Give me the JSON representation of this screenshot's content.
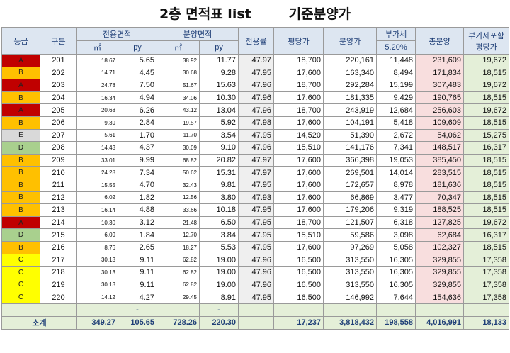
{
  "title": "2층 면적표 list        기준분양가",
  "headers": {
    "grade": "등급",
    "unit": "구분",
    "exclusive_area": "전용면적",
    "sale_area": "분양면적",
    "sqm": "㎡",
    "py": "py",
    "ratio": "전용률",
    "price_per_py": "평당가",
    "sale_price": "분양가",
    "vat": "부가세",
    "vat_rate": "5.20%",
    "total_price": "총분양",
    "vat_incl_line1": "부가세포함",
    "vat_incl_line2": "평당가"
  },
  "grade_colors": {
    "A": "#c00000",
    "B": "#ffc000",
    "C": "#ffff00",
    "D": "#a9d08e",
    "E": "#d9d9d9"
  },
  "rows": [
    {
      "grade": "A",
      "unit": "201",
      "ex_m2": "18.67",
      "ex_py": "5.65",
      "sa_m2": "38.92",
      "sa_py": "11.77",
      "ratio": "47.97",
      "ppy": "18,700",
      "price": "220,161",
      "vat": "11,448",
      "total": "231,609",
      "vppy": "19,672"
    },
    {
      "grade": "B",
      "unit": "202",
      "ex_m2": "14.71",
      "ex_py": "4.45",
      "sa_m2": "30.68",
      "sa_py": "9.28",
      "ratio": "47.95",
      "ppy": "17,600",
      "price": "163,340",
      "vat": "8,494",
      "total": "171,834",
      "vppy": "18,515"
    },
    {
      "grade": "A",
      "unit": "203",
      "ex_m2": "24.78",
      "ex_py": "7.50",
      "sa_m2": "51.67",
      "sa_py": "15.63",
      "ratio": "47.96",
      "ppy": "18,700",
      "price": "292,284",
      "vat": "15,199",
      "total": "307,483",
      "vppy": "19,672"
    },
    {
      "grade": "B",
      "unit": "204",
      "ex_m2": "16.34",
      "ex_py": "4.94",
      "sa_m2": "34.06",
      "sa_py": "10.30",
      "ratio": "47.96",
      "ppy": "17,600",
      "price": "181,335",
      "vat": "9,429",
      "total": "190,765",
      "vppy": "18,515"
    },
    {
      "grade": "A",
      "unit": "205",
      "ex_m2": "20.68",
      "ex_py": "6.26",
      "sa_m2": "43.12",
      "sa_py": "13.04",
      "ratio": "47.96",
      "ppy": "18,700",
      "price": "243,919",
      "vat": "12,684",
      "total": "256,603",
      "vppy": "19,672"
    },
    {
      "grade": "B",
      "unit": "206",
      "ex_m2": "9.39",
      "ex_py": "2.84",
      "sa_m2": "19.57",
      "sa_py": "5.92",
      "ratio": "47.98",
      "ppy": "17,600",
      "price": "104,191",
      "vat": "5,418",
      "total": "109,609",
      "vppy": "18,515"
    },
    {
      "grade": "E",
      "unit": "207",
      "ex_m2": "5.61",
      "ex_py": "1.70",
      "sa_m2": "11.70",
      "sa_py": "3.54",
      "ratio": "47.95",
      "ppy": "14,520",
      "price": "51,390",
      "vat": "2,672",
      "total": "54,062",
      "vppy": "15,275"
    },
    {
      "grade": "D",
      "unit": "208",
      "ex_m2": "14.43",
      "ex_py": "4.37",
      "sa_m2": "30.09",
      "sa_py": "9.10",
      "ratio": "47.96",
      "ppy": "15,510",
      "price": "141,176",
      "vat": "7,341",
      "total": "148,517",
      "vppy": "16,317"
    },
    {
      "grade": "B",
      "unit": "209",
      "ex_m2": "33.01",
      "ex_py": "9.99",
      "sa_m2": "68.82",
      "sa_py": "20.82",
      "ratio": "47.97",
      "ppy": "17,600",
      "price": "366,398",
      "vat": "19,053",
      "total": "385,450",
      "vppy": "18,515"
    },
    {
      "grade": "B",
      "unit": "210",
      "ex_m2": "24.28",
      "ex_py": "7.34",
      "sa_m2": "50.62",
      "sa_py": "15.31",
      "ratio": "47.97",
      "ppy": "17,600",
      "price": "269,501",
      "vat": "14,014",
      "total": "283,515",
      "vppy": "18,515"
    },
    {
      "grade": "B",
      "unit": "211",
      "ex_m2": "15.55",
      "ex_py": "4.70",
      "sa_m2": "32.43",
      "sa_py": "9.81",
      "ratio": "47.95",
      "ppy": "17,600",
      "price": "172,657",
      "vat": "8,978",
      "total": "181,636",
      "vppy": "18,515"
    },
    {
      "grade": "B",
      "unit": "212",
      "ex_m2": "6.02",
      "ex_py": "1.82",
      "sa_m2": "12.56",
      "sa_py": "3.80",
      "ratio": "47.93",
      "ppy": "17,600",
      "price": "66,869",
      "vat": "3,477",
      "total": "70,347",
      "vppy": "18,515"
    },
    {
      "grade": "B",
      "unit": "213",
      "ex_m2": "16.14",
      "ex_py": "4.88",
      "sa_m2": "33.66",
      "sa_py": "10.18",
      "ratio": "47.95",
      "ppy": "17,600",
      "price": "179,206",
      "vat": "9,319",
      "total": "188,525",
      "vppy": "18,515"
    },
    {
      "grade": "A",
      "unit": "214",
      "ex_m2": "10.30",
      "ex_py": "3.12",
      "sa_m2": "21.48",
      "sa_py": "6.50",
      "ratio": "47.95",
      "ppy": "18,700",
      "price": "121,507",
      "vat": "6,318",
      "total": "127,825",
      "vppy": "19,672"
    },
    {
      "grade": "D",
      "unit": "215",
      "ex_m2": "6.09",
      "ex_py": "1.84",
      "sa_m2": "12.70",
      "sa_py": "3.84",
      "ratio": "47.95",
      "ppy": "15,510",
      "price": "59,586",
      "vat": "3,098",
      "total": "62,684",
      "vppy": "16,317"
    },
    {
      "grade": "B",
      "unit": "216",
      "ex_m2": "8.76",
      "ex_py": "2.65",
      "sa_m2": "18.27",
      "sa_py": "5.53",
      "ratio": "47.95",
      "ppy": "17,600",
      "price": "97,269",
      "vat": "5,058",
      "total": "102,327",
      "vppy": "18,515"
    },
    {
      "grade": "C",
      "unit": "217",
      "ex_m2": "30.13",
      "ex_py": "9.11",
      "sa_m2": "62.82",
      "sa_py": "19.00",
      "ratio": "47.96",
      "ppy": "16,500",
      "price": "313,550",
      "vat": "16,305",
      "total": "329,855",
      "vppy": "17,358"
    },
    {
      "grade": "C",
      "unit": "218",
      "ex_m2": "30.13",
      "ex_py": "9.11",
      "sa_m2": "62.82",
      "sa_py": "19.00",
      "ratio": "47.96",
      "ppy": "16,500",
      "price": "313,550",
      "vat": "16,305",
      "total": "329,855",
      "vppy": "17,358"
    },
    {
      "grade": "C",
      "unit": "219",
      "ex_m2": "30.13",
      "ex_py": "9.11",
      "sa_m2": "62.82",
      "sa_py": "19.00",
      "ratio": "47.96",
      "ppy": "16,500",
      "price": "313,550",
      "vat": "16,305",
      "total": "329,855",
      "vppy": "17,358"
    },
    {
      "grade": "C",
      "unit": "220",
      "ex_m2": "14.12",
      "ex_py": "4.27",
      "sa_m2": "29.45",
      "sa_py": "8.91",
      "ratio": "47.95",
      "ppy": "16,500",
      "price": "146,992",
      "vat": "7,644",
      "total": "154,636",
      "vppy": "17,358"
    }
  ],
  "blank_row_marks": [
    "-",
    "-"
  ],
  "totals": {
    "label": "소계",
    "ex_m2": "349.27",
    "ex_py": "105.65",
    "sa_m2": "728.26",
    "sa_py": "220.30",
    "ppy": "17,237",
    "price": "3,818,432",
    "vat": "198,558",
    "total": "4,016,991",
    "vppy": "18,133"
  }
}
